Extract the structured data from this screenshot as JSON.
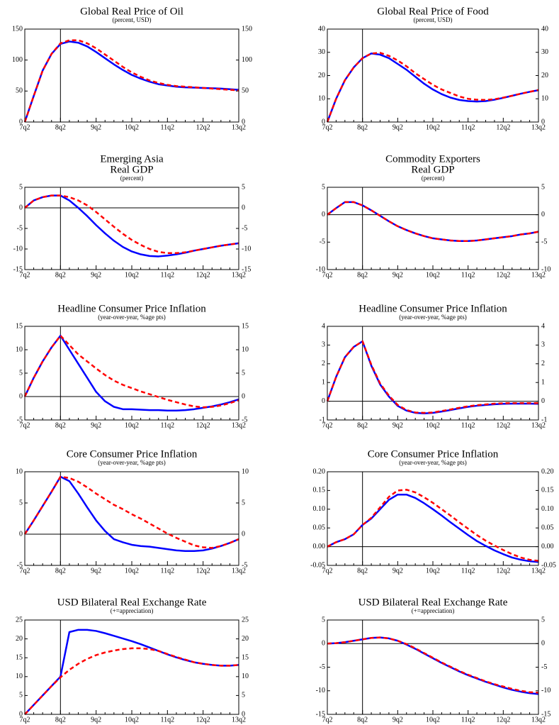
{
  "chart_data": [
    {
      "type": "line",
      "title": [
        "Global Real Price of Oil"
      ],
      "subtitle": "(percent, USD)",
      "categories": [
        "7q2",
        null,
        null,
        null,
        "8q2",
        null,
        null,
        null,
        "9q2",
        null,
        null,
        null,
        "10q2",
        null,
        null,
        null,
        "11q2",
        null,
        null,
        null,
        "12q2",
        null,
        null,
        null,
        "13q2"
      ],
      "vline": "8q2",
      "ylim": [
        0,
        150
      ],
      "yticks": [
        0,
        50,
        100,
        150
      ],
      "series": [
        {
          "color": "#0000ff",
          "values": [
            0,
            42,
            83,
            110,
            126,
            130,
            128,
            122,
            113,
            103,
            93,
            84,
            76,
            70,
            65,
            61,
            59,
            57,
            56,
            55.5,
            55,
            54.5,
            54,
            53,
            52
          ]
        },
        {
          "color": "#ff0000",
          "dashed": true,
          "values": [
            0,
            42,
            83,
            110,
            127,
            132,
            132,
            127,
            119,
            109,
            99,
            89,
            80,
            73,
            67,
            63,
            60,
            58,
            57,
            56,
            55,
            54,
            53,
            52,
            51
          ]
        }
      ]
    },
    {
      "type": "line",
      "title": [
        "Global Real Price of Food"
      ],
      "subtitle": "(percent, USD)",
      "categories": [
        "7q2",
        null,
        null,
        null,
        "8q2",
        null,
        null,
        null,
        "9q2",
        null,
        null,
        null,
        "10q2",
        null,
        null,
        null,
        "11q2",
        null,
        null,
        null,
        "12q2",
        null,
        null,
        null,
        "13q2"
      ],
      "vline": "8q2",
      "ylim": [
        0,
        40
      ],
      "yticks": [
        0,
        10,
        20,
        30,
        40
      ],
      "series": [
        {
          "color": "#0000ff",
          "values": [
            0,
            10,
            18,
            23.5,
            27.5,
            29.5,
            29,
            27.5,
            25,
            22.5,
            19.5,
            16.5,
            14,
            12,
            10.5,
            9.5,
            9,
            8.8,
            9,
            9.6,
            10.4,
            11.3,
            12.2,
            13,
            13.7
          ]
        },
        {
          "color": "#ff0000",
          "dashed": true,
          "values": [
            0,
            10,
            18,
            23.5,
            27.5,
            29.5,
            29.8,
            28.5,
            26.5,
            24,
            21,
            18.5,
            16,
            14,
            12.5,
            11,
            10,
            9.6,
            9.5,
            9.8,
            10.5,
            11.3,
            12.2,
            13,
            13.8
          ]
        }
      ]
    },
    {
      "type": "line",
      "title": [
        "Emerging Asia",
        "Real GDP"
      ],
      "subtitle": "(percent)",
      "categories": [
        "7q2",
        null,
        null,
        null,
        "8q2",
        null,
        null,
        null,
        "9q2",
        null,
        null,
        null,
        "10q2",
        null,
        null,
        null,
        "11q2",
        null,
        null,
        null,
        "12q2",
        null,
        null,
        null,
        "13q2"
      ],
      "vline": "8q2",
      "ylim": [
        -15,
        5
      ],
      "yticks": [
        -15,
        -10,
        -5,
        0,
        5
      ],
      "series": [
        {
          "color": "#0000ff",
          "values": [
            0,
            1.8,
            2.6,
            3,
            3,
            1.8,
            0,
            -2,
            -4.2,
            -6.2,
            -8,
            -9.5,
            -10.6,
            -11.3,
            -11.7,
            -11.8,
            -11.6,
            -11.3,
            -10.9,
            -10.4,
            -10,
            -9.6,
            -9.2,
            -8.9,
            -8.6
          ]
        },
        {
          "color": "#ff0000",
          "dashed": true,
          "values": [
            0,
            1.8,
            2.6,
            3,
            3,
            2.6,
            1.8,
            0.6,
            -1,
            -2.8,
            -4.6,
            -6.3,
            -7.8,
            -9,
            -10,
            -10.7,
            -11,
            -11,
            -10.8,
            -10.4,
            -10,
            -9.6,
            -9.2,
            -8.9,
            -8.6
          ]
        }
      ]
    },
    {
      "type": "line",
      "title": [
        "Commodity Exporters",
        "Real GDP"
      ],
      "subtitle": "(percent)",
      "categories": [
        "7q2",
        null,
        null,
        null,
        "8q2",
        null,
        null,
        null,
        "9q2",
        null,
        null,
        null,
        "10q2",
        null,
        null,
        null,
        "11q2",
        null,
        null,
        null,
        "12q2",
        null,
        null,
        null,
        "13q2"
      ],
      "vline": "8q2",
      "ylim": [
        -10,
        5
      ],
      "yticks": [
        -10,
        -5,
        0,
        5
      ],
      "series": [
        {
          "color": "#0000ff",
          "values": [
            0,
            1.2,
            2.3,
            2.3,
            1.7,
            0.8,
            -0.2,
            -1.2,
            -2.1,
            -2.8,
            -3.4,
            -3.9,
            -4.3,
            -4.5,
            -4.7,
            -4.8,
            -4.8,
            -4.7,
            -4.5,
            -4.3,
            -4.1,
            -3.9,
            -3.6,
            -3.4,
            -3.1
          ]
        },
        {
          "color": "#ff0000",
          "dashed": true,
          "values": [
            0,
            1.2,
            2.3,
            2.3,
            1.7,
            0.8,
            -0.2,
            -1.2,
            -2.1,
            -2.8,
            -3.4,
            -3.9,
            -4.3,
            -4.5,
            -4.7,
            -4.8,
            -4.8,
            -4.7,
            -4.5,
            -4.3,
            -4.1,
            -3.9,
            -3.6,
            -3.4,
            -3.1
          ]
        }
      ]
    },
    {
      "type": "line",
      "title": [
        "Headline Consumer Price Inflation"
      ],
      "subtitle": "(year-over-year, %age pts)",
      "categories": [
        "7q2",
        null,
        null,
        null,
        "8q2",
        null,
        null,
        null,
        "9q2",
        null,
        null,
        null,
        "10q2",
        null,
        null,
        null,
        "11q2",
        null,
        null,
        null,
        "12q2",
        null,
        null,
        null,
        "13q2"
      ],
      "vline": "8q2",
      "ylim": [
        -5,
        15
      ],
      "yticks": [
        -5,
        0,
        5,
        10,
        15
      ],
      "series": [
        {
          "color": "#0000ff",
          "values": [
            0,
            4,
            7.5,
            10.5,
            13,
            10,
            7,
            4,
            1,
            -1,
            -2.2,
            -2.7,
            -2.7,
            -2.8,
            -2.9,
            -2.9,
            -3,
            -3,
            -2.9,
            -2.7,
            -2.4,
            -2.1,
            -1.7,
            -1.2,
            -0.6
          ]
        },
        {
          "color": "#ff0000",
          "dashed": true,
          "values": [
            0,
            4,
            7.5,
            10.5,
            13,
            11,
            9,
            7.5,
            6,
            4.6,
            3.4,
            2.5,
            1.8,
            1.1,
            0.5,
            -0.1,
            -0.7,
            -1.2,
            -1.7,
            -2.1,
            -2.3,
            -2.2,
            -1.9,
            -1.4,
            -0.8
          ]
        }
      ]
    },
    {
      "type": "line",
      "title": [
        "Headline Consumer Price Inflation"
      ],
      "subtitle": "(year-over-year, %age pts)",
      "categories": [
        "7q2",
        null,
        null,
        null,
        "8q2",
        null,
        null,
        null,
        "9q2",
        null,
        null,
        null,
        "10q2",
        null,
        null,
        null,
        "11q2",
        null,
        null,
        null,
        "12q2",
        null,
        null,
        null,
        "13q2"
      ],
      "vline": "8q2",
      "ylim": [
        -1,
        4
      ],
      "yticks": [
        -1,
        0,
        1,
        2,
        3,
        4
      ],
      "series": [
        {
          "color": "#0000ff",
          "values": [
            0,
            1.3,
            2.35,
            2.9,
            3.2,
            1.9,
            0.9,
            0.25,
            -0.25,
            -0.5,
            -0.62,
            -0.65,
            -0.62,
            -0.55,
            -0.47,
            -0.38,
            -0.3,
            -0.24,
            -0.2,
            -0.16,
            -0.14,
            -0.13,
            -0.13,
            -0.13,
            -0.14
          ]
        },
        {
          "color": "#ff0000",
          "dashed": true,
          "values": [
            0,
            1.3,
            2.35,
            2.9,
            3.2,
            1.95,
            0.95,
            0.3,
            -0.2,
            -0.47,
            -0.6,
            -0.62,
            -0.6,
            -0.52,
            -0.44,
            -0.35,
            -0.27,
            -0.21,
            -0.17,
            -0.13,
            -0.11,
            -0.1,
            -0.1,
            -0.1,
            -0.1
          ]
        }
      ]
    },
    {
      "type": "line",
      "title": [
        "Core Consumer Price Inflation"
      ],
      "subtitle": "(year-over-year, %age pts)",
      "categories": [
        "7q2",
        null,
        null,
        null,
        "8q2",
        null,
        null,
        null,
        "9q2",
        null,
        null,
        null,
        "10q2",
        null,
        null,
        null,
        "11q2",
        null,
        null,
        null,
        "12q2",
        null,
        null,
        null,
        "13q2"
      ],
      "vline": "8q2",
      "ylim": [
        -5,
        10
      ],
      "yticks": [
        -5,
        0,
        5,
        10
      ],
      "series": [
        {
          "color": "#0000ff",
          "values": [
            0,
            2.2,
            4.5,
            6.8,
            9.2,
            8.5,
            6.5,
            4.3,
            2.2,
            0.5,
            -0.8,
            -1.3,
            -1.7,
            -1.9,
            -2,
            -2.2,
            -2.4,
            -2.6,
            -2.7,
            -2.7,
            -2.6,
            -2.3,
            -1.9,
            -1.4,
            -0.8
          ]
        },
        {
          "color": "#ff0000",
          "dashed": true,
          "values": [
            0,
            2.2,
            4.5,
            6.8,
            9.2,
            9,
            8.4,
            7.5,
            6.5,
            5.6,
            4.7,
            4,
            3.2,
            2.5,
            1.7,
            0.9,
            0.1,
            -0.6,
            -1.2,
            -1.8,
            -2.1,
            -2.2,
            -1.9,
            -1.4,
            -0.8
          ]
        }
      ]
    },
    {
      "type": "line",
      "title": [
        "Core Consumer Price Inflation"
      ],
      "subtitle": "(year-over-year, %age pts)",
      "categories": [
        "7q2",
        null,
        null,
        null,
        "8q2",
        null,
        null,
        null,
        "9q2",
        null,
        null,
        null,
        "10q2",
        null,
        null,
        null,
        "11q2",
        null,
        null,
        null,
        "12q2",
        null,
        null,
        null,
        "13q2"
      ],
      "vline": "8q2",
      "ylim": [
        -0.05,
        0.2
      ],
      "yticks": [
        -0.05,
        {
          "value": 0,
          "label": "0.00"
        },
        0.05,
        {
          "value": 0.1,
          "label": "0.10"
        },
        0.15,
        {
          "value": 0.2,
          "label": "0.20"
        }
      ],
      "series": [
        {
          "color": "#0000ff",
          "values": [
            0,
            0.012,
            0.02,
            0.033,
            0.058,
            0.075,
            0.1,
            0.125,
            0.139,
            0.139,
            0.13,
            0.116,
            0.1,
            0.083,
            0.065,
            0.048,
            0.031,
            0.015,
            0.002,
            -0.01,
            -0.02,
            -0.029,
            -0.035,
            -0.039,
            -0.041
          ]
        },
        {
          "color": "#ff0000",
          "dashed": true,
          "values": [
            0,
            0.012,
            0.02,
            0.033,
            0.058,
            0.077,
            0.105,
            0.133,
            0.15,
            0.152,
            0.145,
            0.132,
            0.117,
            0.1,
            0.083,
            0.065,
            0.048,
            0.031,
            0.016,
            0.003,
            -0.009,
            -0.02,
            -0.029,
            -0.035,
            -0.038
          ]
        }
      ]
    },
    {
      "type": "line",
      "title": [
        "USD Bilateral Real Exchange Rate"
      ],
      "subtitle": "(+=appreciation)",
      "categories": [
        "7q2",
        null,
        null,
        null,
        "8q2",
        null,
        null,
        null,
        "9q2",
        null,
        null,
        null,
        "10q2",
        null,
        null,
        null,
        "11q2",
        null,
        null,
        null,
        "12q2",
        null,
        null,
        null,
        "13q2"
      ],
      "vline": "8q2",
      "ylim": [
        0,
        25
      ],
      "yticks": [
        0,
        5,
        10,
        15,
        20,
        25
      ],
      "series": [
        {
          "color": "#0000ff",
          "values": [
            0,
            2.5,
            5,
            7.5,
            10,
            21.8,
            22.4,
            22.4,
            22.1,
            21.5,
            20.8,
            20.1,
            19.4,
            18.6,
            17.7,
            16.8,
            15.9,
            15.1,
            14.4,
            13.8,
            13.4,
            13.1,
            12.9,
            12.9,
            13.1
          ]
        },
        {
          "color": "#ff0000",
          "dashed": true,
          "values": [
            0,
            2.5,
            5,
            7.5,
            9.8,
            11.8,
            13.4,
            14.7,
            15.7,
            16.4,
            16.9,
            17.3,
            17.5,
            17.5,
            17.3,
            16.8,
            16,
            15.2,
            14.5,
            13.8,
            13.4,
            13.1,
            12.9,
            12.9,
            13.1
          ]
        }
      ]
    },
    {
      "type": "line",
      "title": [
        "USD Bilateral Real Exchange Rate"
      ],
      "subtitle": "(+=appreciation)",
      "categories": [
        "7q2",
        null,
        null,
        null,
        "8q2",
        null,
        null,
        null,
        "9q2",
        null,
        null,
        null,
        "10q2",
        null,
        null,
        null,
        "11q2",
        null,
        null,
        null,
        "12q2",
        null,
        null,
        null,
        "13q2"
      ],
      "vline": "8q2",
      "ylim": [
        -15,
        5
      ],
      "yticks": [
        -15,
        -10,
        -5,
        0,
        5
      ],
      "series": [
        {
          "color": "#0000ff",
          "values": [
            0,
            0.1,
            0.3,
            0.6,
            0.9,
            1.2,
            1.3,
            1.1,
            0.6,
            -0.2,
            -1.1,
            -2.1,
            -3.1,
            -4.1,
            -5,
            -5.9,
            -6.7,
            -7.4,
            -8.1,
            -8.7,
            -9.3,
            -9.8,
            -10.2,
            -10.5,
            -10.7
          ]
        },
        {
          "color": "#ff0000",
          "dashed": true,
          "values": [
            0,
            0.1,
            0.3,
            0.6,
            0.9,
            1.2,
            1.3,
            1.1,
            0.6,
            -0.1,
            -1,
            -2,
            -3,
            -4,
            -4.9,
            -5.8,
            -6.6,
            -7.3,
            -8,
            -8.6,
            -9.1,
            -9.6,
            -10,
            -10.3,
            -10.4
          ]
        }
      ]
    }
  ]
}
